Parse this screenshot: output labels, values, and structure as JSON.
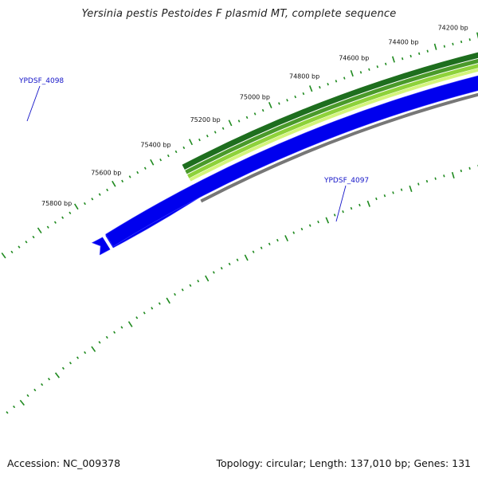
{
  "title": "Yersinia pestis Pestoides F plasmid MT, complete sequence",
  "footer": {
    "accession": "Accession: NC_009378",
    "summary": "Topology: circular; Length: 137,010 bp; Genes: 131"
  },
  "genes": [
    {
      "label": "YPDSF_4098",
      "color": "#0000ee",
      "strand": "minus"
    },
    {
      "label": "YPDSF_4097",
      "color": "#0000ee",
      "strand": "minus"
    }
  ],
  "ruler": {
    "labels": [
      "75800 bp",
      "75600 bp",
      "75400 bp",
      "75200 bp",
      "75000 bp",
      "74800 bp",
      "74600 bp",
      "74400 bp",
      "74200 bp"
    ]
  },
  "colors": {
    "gc_outer": "#1e6e1e",
    "gc_mid": "#4a9a2a",
    "gc_light": "#8ed23a",
    "gc_pale": "#d4f57c",
    "gene_fill": "#0000ee",
    "backbone": "#777777",
    "tick": "#1f8a1f",
    "gene_label": "#1414c8"
  }
}
